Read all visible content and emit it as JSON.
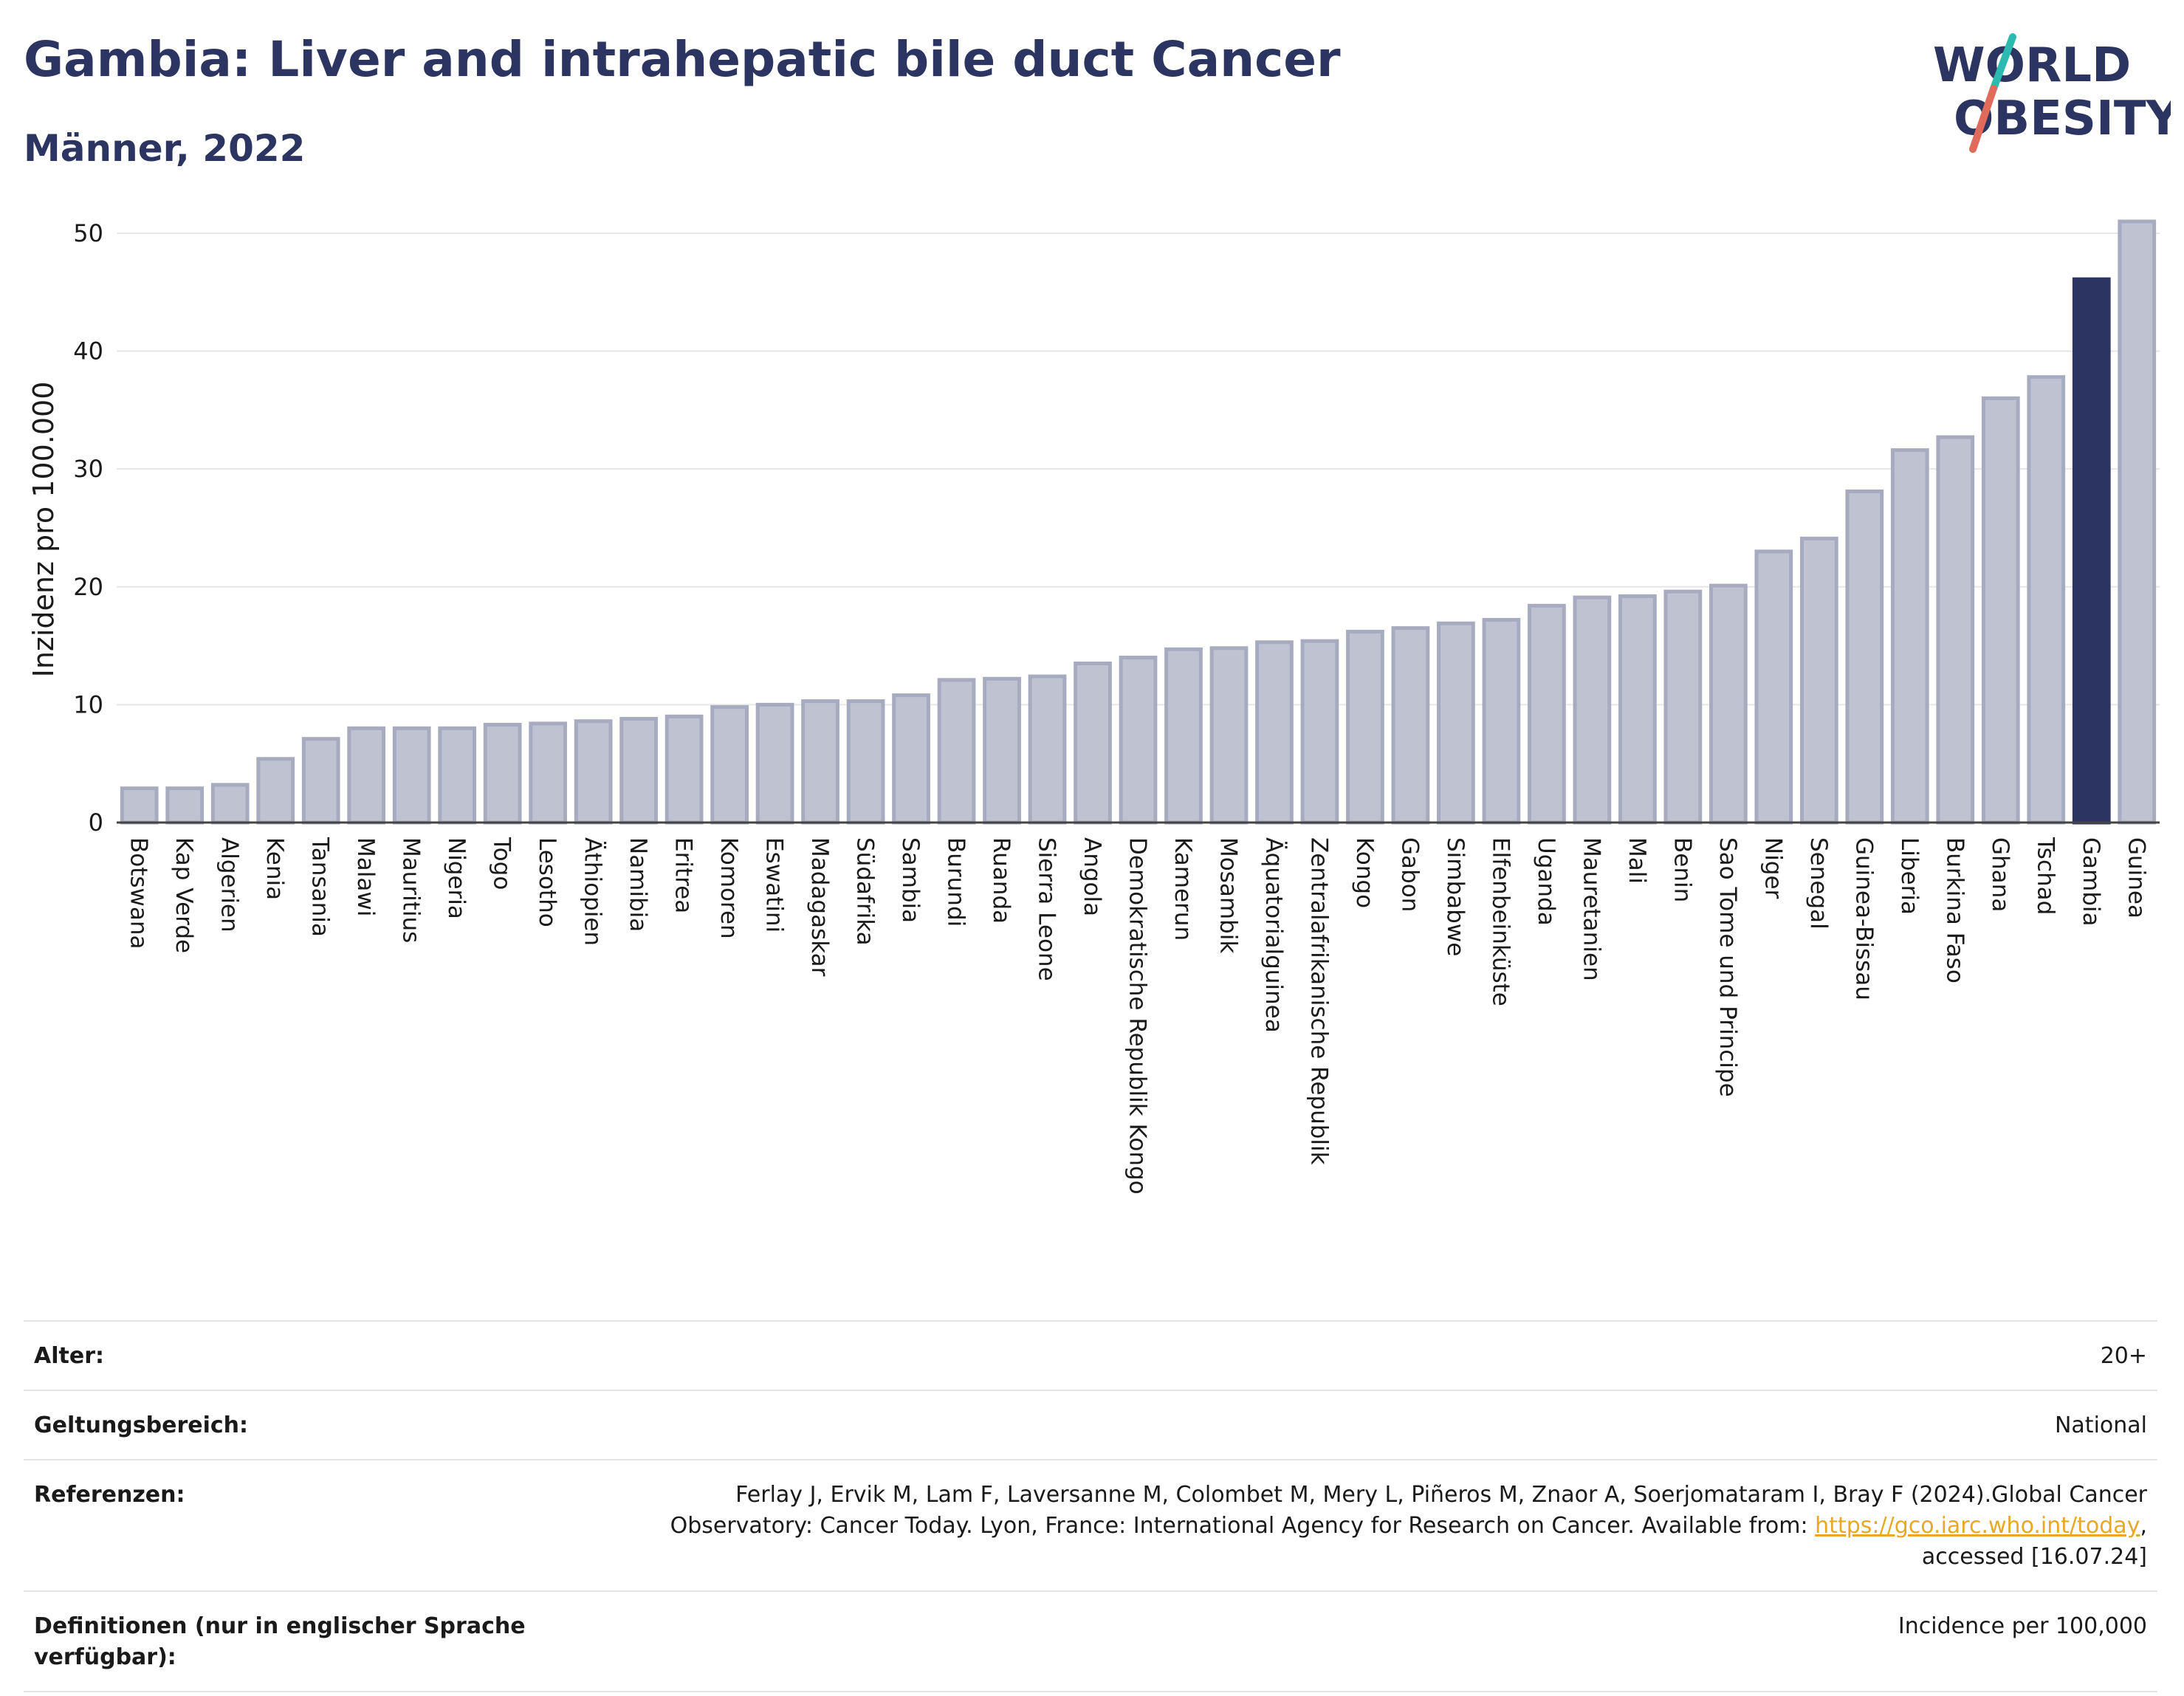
{
  "header": {
    "title": "Gambia: Liver and intrahepatic bile duct Cancer",
    "subtitle": "Männer, 2022"
  },
  "logo": {
    "line1": "WORLD",
    "line2": "OBESITY",
    "text_color": "#2c3561",
    "slash_color_top": "#2bb9b0",
    "slash_color_bottom": "#e26a5a"
  },
  "chart_data": {
    "type": "bar",
    "title": "Gambia: Liver and intrahepatic bile duct Cancer",
    "subtitle": "Männer, 2022",
    "xlabel": "",
    "ylabel": "Inzidenz pro 100.000",
    "ylim": [
      0,
      52
    ],
    "yticks": [
      0,
      10,
      20,
      30,
      40,
      50
    ],
    "grid": true,
    "highlight": "Gambia",
    "bar_color": "#bfc3d1",
    "bar_edge_color": "#a6abc0",
    "highlight_color": "#2c3561",
    "categories": [
      "Botswana",
      "Kap Verde",
      "Algerien",
      "Kenia",
      "Tansania",
      "Malawi",
      "Mauritius",
      "Nigeria",
      "Togo",
      "Lesotho",
      "Äthiopien",
      "Namibia",
      "Eritrea",
      "Komoren",
      "Eswatini",
      "Madagaskar",
      "Südafrika",
      "Sambia",
      "Burundi",
      "Ruanda",
      "Sierra Leone",
      "Angola",
      "Demokratische Republik Kongo",
      "Kamerun",
      "Mosambik",
      "Äquatorialguinea",
      "Zentralafrikanische Republik",
      "Kongo",
      "Gabon",
      "Simbabwe",
      "Elfenbeinküste",
      "Uganda",
      "Mauretanien",
      "Mali",
      "Benin",
      "Sao Tome und Principe",
      "Niger",
      "Senegal",
      "Guinea-Bissau",
      "Liberia",
      "Burkina Faso",
      "Ghana",
      "Tschad",
      "Gambia",
      "Guinea"
    ],
    "values": [
      2.9,
      2.9,
      3.2,
      5.4,
      7.1,
      8.0,
      8.0,
      8.0,
      8.3,
      8.4,
      8.6,
      8.8,
      9.0,
      9.8,
      10.0,
      10.3,
      10.3,
      10.8,
      12.1,
      12.2,
      12.4,
      13.5,
      14.0,
      14.7,
      14.8,
      15.3,
      15.4,
      16.2,
      16.5,
      16.9,
      17.2,
      18.4,
      19.1,
      19.2,
      19.6,
      20.1,
      23.0,
      24.1,
      28.1,
      31.6,
      32.7,
      36.0,
      37.8,
      46.1,
      51.0
    ]
  },
  "info": {
    "rows": [
      {
        "label": "Alter:",
        "value": "20+"
      },
      {
        "label": "Geltungsbereich:",
        "value": "National"
      },
      {
        "label": "Referenzen:",
        "value_lines": [
          "Ferlay J, Ervik M, Lam F, Laversanne M, Colombet M, Mery L, Piñeros M, Znaor A, Soerjomataram I, Bray F (2024).Global Cancer",
          "Observatory: Cancer Today. Lyon, France: International Agency for Research on Cancer. Available from: "
        ],
        "link_text": "https://gco.iarc.who.int/today",
        "after_link": ",",
        "last_line": "accessed [16.07.24]"
      },
      {
        "label": "Definitionen (nur in englischer Sprache verfügbar):",
        "value": "Incidence per 100,000"
      }
    ]
  }
}
